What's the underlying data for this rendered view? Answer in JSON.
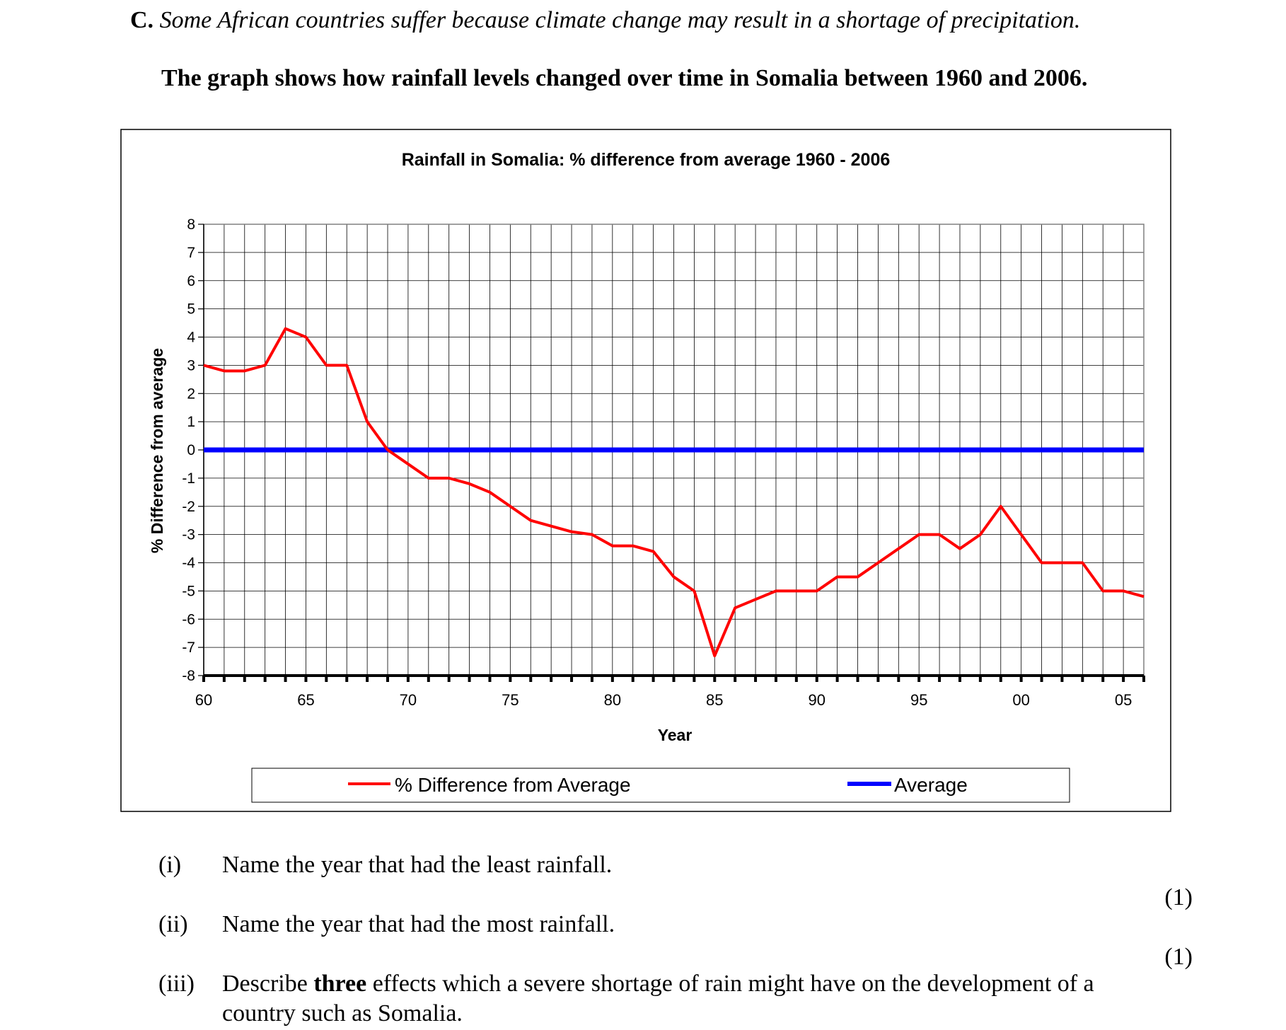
{
  "intro": {
    "label": "C.",
    "text": "Some African countries suffer because climate change may result in a shortage of precipitation."
  },
  "lead": "The graph shows how rainfall levels changed over time in Somalia between 1960 and 2006.",
  "chart_data": {
    "type": "line",
    "title": "Rainfall in Somalia: % difference from average 1960 - 2006",
    "xlabel": "Year",
    "ylabel": "% Difference from average",
    "x": [
      1960,
      1961,
      1962,
      1963,
      1964,
      1965,
      1966,
      1967,
      1968,
      1969,
      1970,
      1971,
      1972,
      1973,
      1974,
      1975,
      1976,
      1977,
      1978,
      1979,
      1980,
      1981,
      1982,
      1983,
      1984,
      1985,
      1986,
      1987,
      1988,
      1989,
      1990,
      1991,
      1992,
      1993,
      1994,
      1995,
      1996,
      1997,
      1998,
      1999,
      2000,
      2001,
      2002,
      2003,
      2004,
      2005,
      2006
    ],
    "xlim": [
      1960,
      2006
    ],
    "xticks": [
      {
        "x": 1960,
        "label": "60"
      },
      {
        "x": 1965,
        "label": "65"
      },
      {
        "x": 1970,
        "label": "70"
      },
      {
        "x": 1975,
        "label": "75"
      },
      {
        "x": 1980,
        "label": "80"
      },
      {
        "x": 1985,
        "label": "85"
      },
      {
        "x": 1990,
        "label": "90"
      },
      {
        "x": 1995,
        "label": "95"
      },
      {
        "x": 2000,
        "label": "00"
      },
      {
        "x": 2005,
        "label": "05"
      }
    ],
    "ylim": [
      -8,
      8
    ],
    "yticks": [
      "8",
      "7",
      "6",
      "5",
      "4",
      "3",
      "2",
      "1",
      "0",
      "-1",
      "-2",
      "-3",
      "-4",
      "-5",
      "-6",
      "-7",
      "-8"
    ],
    "grid": true,
    "legend_position": "bottom",
    "series": [
      {
        "name": "% Difference from Average",
        "color": "#ff0000",
        "values": [
          3,
          2.8,
          2.8,
          3,
          4.3,
          4,
          3,
          3,
          1,
          0,
          -0.5,
          -1,
          -1,
          -1.2,
          -1.5,
          -2,
          -2.5,
          -2.7,
          -2.9,
          -3,
          -3.4,
          -3.4,
          -3.6,
          -4.5,
          -5,
          -7.3,
          -5.6,
          -5.3,
          -5,
          -5,
          -5,
          -4.5,
          -4.5,
          -4,
          -3.5,
          -3,
          -3,
          -3.5,
          -3,
          -2,
          -3,
          -4,
          -4,
          -4,
          -5,
          -5,
          -5.2
        ]
      },
      {
        "name": "Average",
        "color": "#0000ff",
        "values": [
          0,
          0,
          0,
          0,
          0,
          0,
          0,
          0,
          0,
          0,
          0,
          0,
          0,
          0,
          0,
          0,
          0,
          0,
          0,
          0,
          0,
          0,
          0,
          0,
          0,
          0,
          0,
          0,
          0,
          0,
          0,
          0,
          0,
          0,
          0,
          0,
          0,
          0,
          0,
          0,
          0,
          0,
          0,
          0,
          0,
          0,
          0
        ]
      }
    ]
  },
  "questions": [
    {
      "num": "(i)",
      "text": "Name the year that had the least rainfall.",
      "marks": "(1)"
    },
    {
      "num": "(ii)",
      "text": "Name the year that had the most rainfall.",
      "marks": "(1)"
    },
    {
      "num": "(iii)",
      "text_before": "Describe ",
      "text_bold": "three",
      "text_after": " effects which a severe shortage of rain might have on the development of a",
      "text_line2": "country such as Somalia."
    }
  ]
}
